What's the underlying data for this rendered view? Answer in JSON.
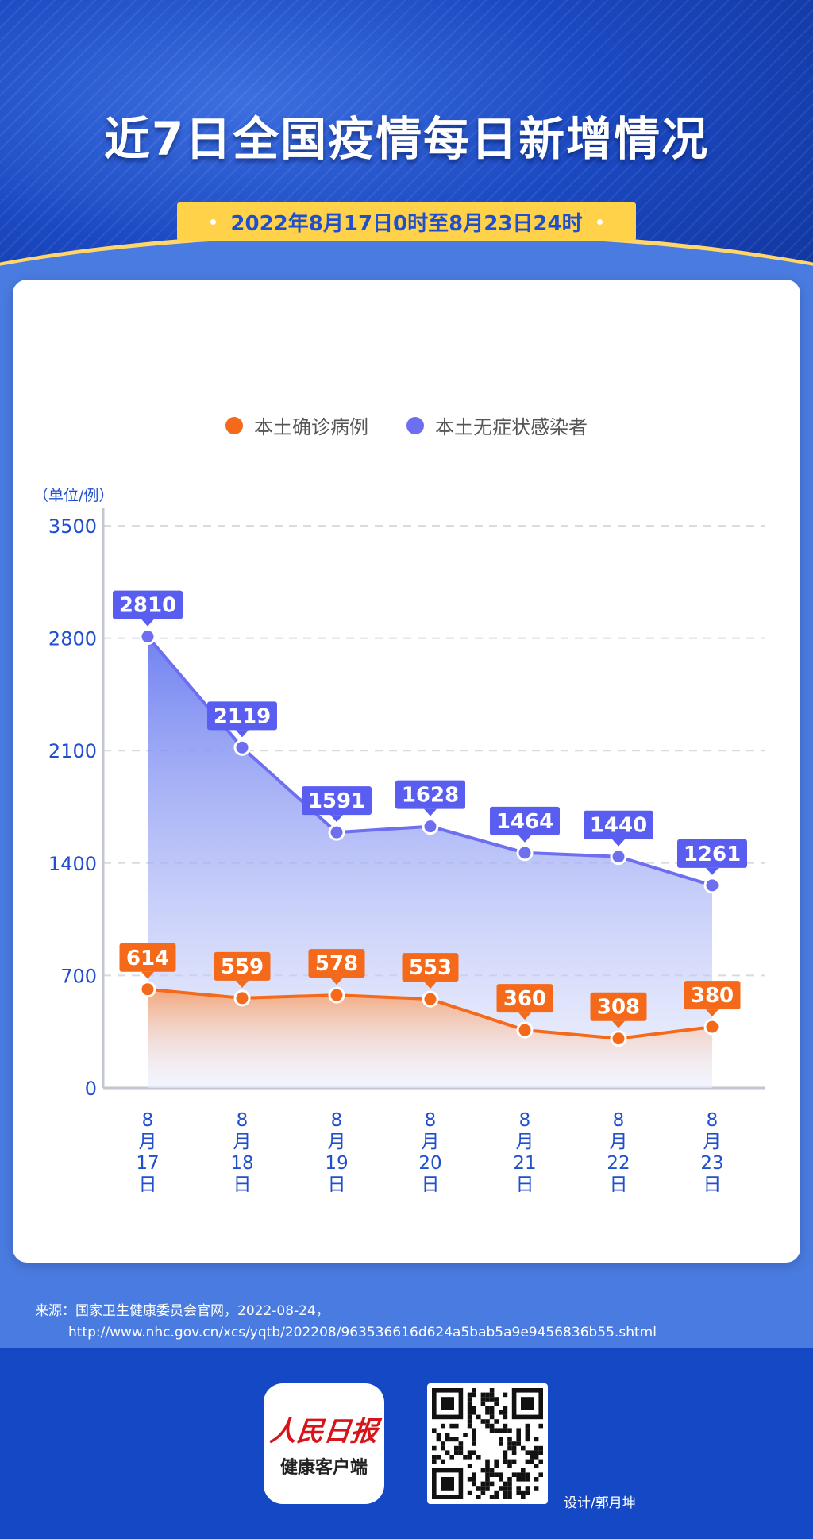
{
  "header": {
    "title": "近7日全国疫情每日新增情况",
    "date_range": "2022年8月17日0时至8月23日24时"
  },
  "legend": {
    "series1": "本土确诊病例",
    "series2": "本土无症状感染者"
  },
  "colors": {
    "confirmed": "#f46a1a",
    "asymptomatic": "#6e6ef0",
    "axis_text": "#1f4fcf"
  },
  "chart_data": {
    "type": "area",
    "ylabel": "（单位/例）",
    "ylim": [
      0,
      3500
    ],
    "yticks": [
      0,
      700,
      1400,
      2100,
      2800,
      3500
    ],
    "grid": true,
    "legend_position": "top",
    "categories": [
      [
        "8",
        "月",
        "17",
        "日"
      ],
      [
        "8",
        "月",
        "18",
        "日"
      ],
      [
        "8",
        "月",
        "19",
        "日"
      ],
      [
        "8",
        "月",
        "20",
        "日"
      ],
      [
        "8",
        "月",
        "21",
        "日"
      ],
      [
        "8",
        "月",
        "22",
        "日"
      ],
      [
        "8",
        "月",
        "23",
        "日"
      ]
    ],
    "series": [
      {
        "name": "本土无症状感染者",
        "values": [
          2810,
          2119,
          1591,
          1628,
          1464,
          1440,
          1261
        ]
      },
      {
        "name": "本土确诊病例",
        "values": [
          614,
          559,
          578,
          553,
          360,
          308,
          380
        ]
      }
    ]
  },
  "footer": {
    "source_line1": "来源：国家卫生健康委员会官网，2022-08-24，",
    "source_line2": "http://www.nhc.gov.cn/xcs/yqtb/202208/963536616d624a5bab5a9e9456836b55.shtml",
    "logo_main": "人民日报",
    "logo_sub": "健康客户端",
    "designer": "设计/郭月坤"
  }
}
